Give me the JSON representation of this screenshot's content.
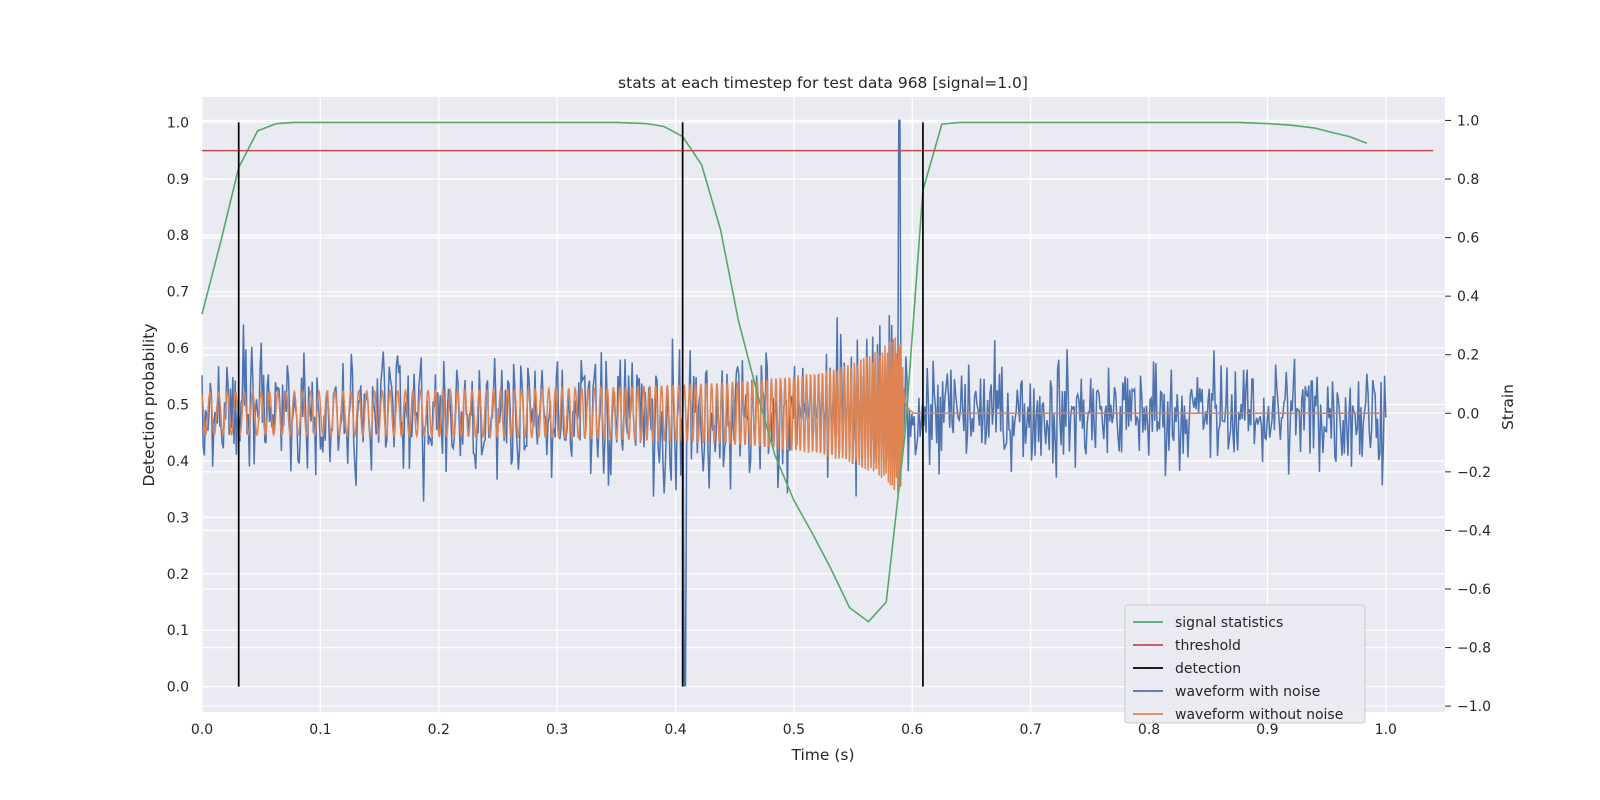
{
  "chart_data": {
    "type": "line",
    "title": "stats at each timestep for test data 968 [signal=1.0]",
    "xlabel": "Time (s)",
    "ylabel_left": "Detection probability",
    "ylabel_right": "Strain",
    "xlim": [
      0.0,
      1.05
    ],
    "ylim_left": [
      -0.045,
      1.045
    ],
    "ylim_right": [
      -1.02,
      1.08
    ],
    "x_ticks": [
      0.0,
      0.1,
      0.2,
      0.3,
      0.4,
      0.5,
      0.6,
      0.7,
      0.8,
      0.9,
      1.0
    ],
    "x_tick_labels": [
      "0.0",
      "0.1",
      "0.2",
      "0.3",
      "0.4",
      "0.5",
      "0.6",
      "0.7",
      "0.8",
      "0.9",
      "1.0"
    ],
    "y_left_ticks": [
      0.0,
      0.1,
      0.2,
      0.3,
      0.4,
      0.5,
      0.6,
      0.7,
      0.8,
      0.9,
      1.0
    ],
    "y_left_tick_labels": [
      "0.0",
      "0.1",
      "0.2",
      "0.3",
      "0.4",
      "0.5",
      "0.6",
      "0.7",
      "0.8",
      "0.9",
      "1.0"
    ],
    "y_right_ticks": [
      -1.0,
      -0.8,
      -0.6,
      -0.4,
      -0.2,
      0.0,
      0.2,
      0.4,
      0.6,
      0.8,
      1.0
    ],
    "y_right_tick_labels": [
      "−1.0",
      "−0.8",
      "−0.6",
      "−0.4",
      "−0.2",
      "0.0",
      "0.2",
      "0.4",
      "0.6",
      "0.8",
      "1.0"
    ],
    "grid": true,
    "legend_position": "lower-right",
    "legend": [
      {
        "label": "signal statistics",
        "color": "#55a868"
      },
      {
        "label": "threshold",
        "color": "#c44e52"
      },
      {
        "label": "detection",
        "color": "#000000"
      },
      {
        "label": "waveform with noise",
        "color": "#4c72b0"
      },
      {
        "label": "waveform without noise",
        "color": "#dd8452"
      }
    ],
    "signal_statistics": {
      "color": "#55a868",
      "x": [
        0.0,
        0.016,
        0.031,
        0.047,
        0.063,
        0.078,
        0.094,
        0.2,
        0.3,
        0.35,
        0.375,
        0.39,
        0.406,
        0.422,
        0.438,
        0.453,
        0.469,
        0.484,
        0.5,
        0.516,
        0.531,
        0.547,
        0.563,
        0.578,
        0.594,
        0.609,
        0.625,
        0.641,
        0.7,
        0.8,
        0.875,
        0.9,
        0.92,
        0.94,
        0.953,
        0.969,
        0.984
      ],
      "y": [
        0.66,
        0.79,
        0.92,
        0.985,
        0.998,
        1.0,
        1.0,
        1.0,
        1.0,
        1.0,
        0.998,
        0.993,
        0.975,
        0.925,
        0.81,
        0.65,
        0.52,
        0.41,
        0.33,
        0.27,
        0.21,
        0.14,
        0.115,
        0.15,
        0.45,
        0.88,
        0.997,
        1.0,
        1.0,
        1.0,
        1.0,
        0.998,
        0.995,
        0.99,
        0.983,
        0.975,
        0.963
      ]
    },
    "threshold": {
      "color": "#c44e52",
      "value": 0.95,
      "x_range": [
        0.0,
        1.04
      ]
    },
    "detections": {
      "color": "#000000",
      "x": [
        0.031,
        0.406,
        0.609
      ],
      "y_range": [
        0.0,
        1.0
      ]
    },
    "waveform_with_noise": {
      "color": "#4c72b0",
      "x_range": [
        0.0,
        1.0
      ],
      "n_points": 1000,
      "noise_amplitude": 0.13,
      "peak_strain": 1.0,
      "peak_time": 0.589,
      "min_strain": -0.93,
      "min_time": 0.408
    },
    "waveform_without_noise": {
      "color": "#dd8452",
      "amplitude_start": 0.06,
      "amplitude_at_merger": 0.32,
      "merger_time": 0.59,
      "ringdown_end": 0.6,
      "x_range": [
        0.0,
        1.0
      ]
    }
  }
}
